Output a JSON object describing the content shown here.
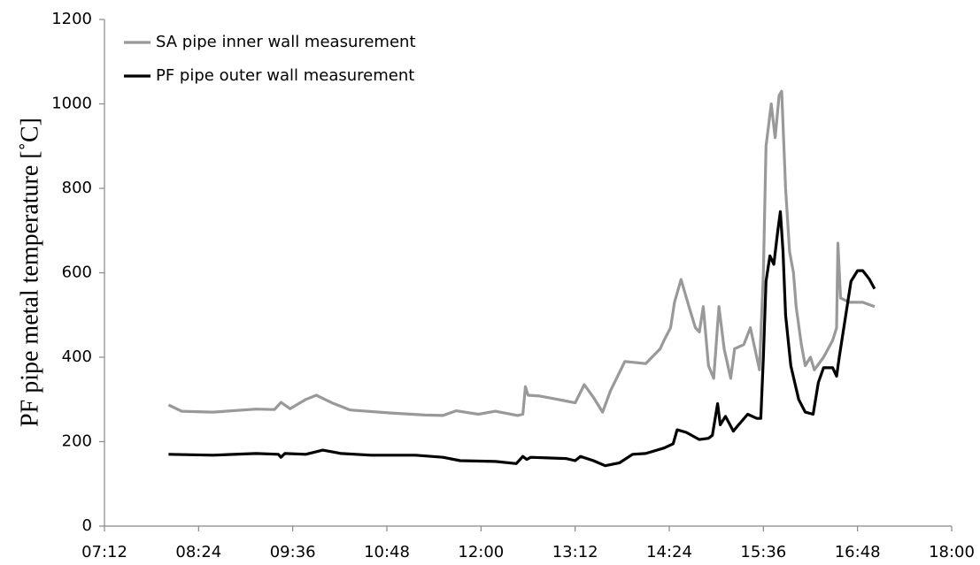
{
  "chart_data": {
    "type": "line",
    "y_label": "PF pipe metal temperature [˚C]",
    "xlim": [
      "07:12",
      "18:00"
    ],
    "xticks": [
      "07:12",
      "08:24",
      "09:36",
      "10:48",
      "12:00",
      "13:12",
      "14:24",
      "15:36",
      "16:48",
      "18:00"
    ],
    "ylim": [
      0,
      1200
    ],
    "yticks": [
      0,
      200,
      400,
      600,
      800,
      1000,
      1200
    ],
    "legend": "top-left",
    "series": [
      {
        "name": "SA pipe inner wall measurement",
        "color": "#999999",
        "x": [
          "08:01",
          "08:11",
          "08:35",
          "09:08",
          "09:22",
          "09:27",
          "09:34",
          "09:46",
          "09:54",
          "10:06",
          "10:20",
          "10:50",
          "11:17",
          "11:31",
          "11:41",
          "11:58",
          "12:11",
          "12:28",
          "12:32",
          "12:34",
          "12:36",
          "12:45",
          "12:59",
          "13:12",
          "13:19",
          "13:26",
          "13:33",
          "13:39",
          "13:50",
          "14:06",
          "14:17",
          "14:20",
          "14:25",
          "14:28",
          "14:33",
          "14:39",
          "14:44",
          "14:47",
          "14:50",
          "14:54",
          "14:58",
          "15:02",
          "15:06",
          "15:11",
          "15:14",
          "15:21",
          "15:26",
          "15:33",
          "15:36",
          "15:38",
          "15:42",
          "15:45",
          "15:48",
          "15:50",
          "15:53",
          "15:56",
          "15:59",
          "16:01",
          "16:05",
          "16:08",
          "16:12",
          "16:15",
          "16:22",
          "16:29",
          "16:32",
          "16:33",
          "16:35",
          "16:42",
          "16:52",
          "17:01"
        ],
        "values": [
          287,
          272,
          270,
          277,
          276,
          293,
          278,
          300,
          310,
          292,
          275,
          268,
          263,
          262,
          273,
          265,
          272,
          262,
          265,
          330,
          310,
          308,
          300,
          292,
          335,
          305,
          270,
          320,
          390,
          385,
          420,
          440,
          470,
          530,
          584,
          520,
          470,
          460,
          520,
          380,
          350,
          520,
          420,
          350,
          420,
          430,
          470,
          370,
          600,
          900,
          1000,
          920,
          1020,
          1030,
          800,
          650,
          600,
          520,
          430,
          380,
          400,
          370,
          400,
          440,
          470,
          670,
          540,
          530,
          530,
          520
        ]
      },
      {
        "name": "PF pipe outer wall measurement",
        "color": "#000000",
        "x": [
          "08:01",
          "08:35",
          "09:08",
          "09:25",
          "09:27",
          "09:30",
          "09:46",
          "09:59",
          "10:13",
          "10:36",
          "11:10",
          "11:31",
          "11:44",
          "12:11",
          "12:27",
          "12:32",
          "12:35",
          "12:38",
          "13:05",
          "13:12",
          "13:16",
          "13:26",
          "13:35",
          "13:46",
          "13:56",
          "14:06",
          "14:20",
          "14:27",
          "14:30",
          "14:37",
          "14:47",
          "14:54",
          "14:57",
          "15:01",
          "15:03",
          "15:07",
          "15:13",
          "15:17",
          "15:24",
          "15:31",
          "15:34",
          "15:36",
          "15:38",
          "15:41",
          "15:44",
          "15:47",
          "15:49",
          "15:51",
          "15:53",
          "15:57",
          "16:03",
          "16:08",
          "16:14",
          "16:18",
          "16:22",
          "16:29",
          "16:32",
          "16:34",
          "16:39",
          "16:43",
          "16:48",
          "16:52",
          "16:57",
          "17:01"
        ],
        "values": [
          170,
          168,
          172,
          170,
          163,
          172,
          170,
          180,
          172,
          168,
          168,
          163,
          155,
          153,
          148,
          165,
          158,
          163,
          160,
          155,
          165,
          155,
          143,
          150,
          170,
          172,
          185,
          195,
          228,
          222,
          205,
          208,
          215,
          290,
          240,
          260,
          225,
          240,
          265,
          255,
          255,
          400,
          580,
          640,
          620,
          700,
          745,
          650,
          500,
          380,
          300,
          270,
          265,
          340,
          375,
          375,
          355,
          400,
          500,
          580,
          605,
          605,
          585,
          562
        ]
      }
    ]
  }
}
